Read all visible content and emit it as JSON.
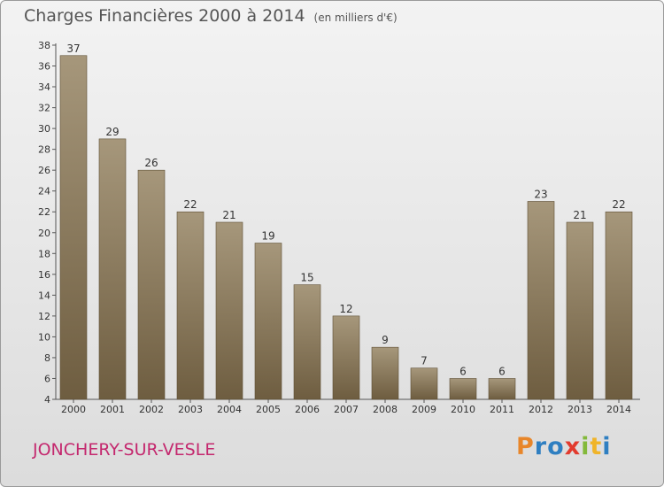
{
  "title": "Charges Financières 2000 à 2014",
  "subtitle": "(en milliers d'€)",
  "commune": "JONCHERY-SUR-VESLE",
  "brand": {
    "letters": [
      "P",
      "r",
      "o",
      "x",
      "i",
      "t",
      "i"
    ],
    "colors": [
      "#e8862a",
      "#2f7fc1",
      "#2f7fc1",
      "#e23b2e",
      "#83b93b",
      "#f0b429",
      "#2f7fc1"
    ]
  },
  "colors": {
    "bar_top": "#a6977b",
    "bar_bottom": "#6e5d40",
    "title": "#555555",
    "commune": "#c4286e"
  },
  "chart_data": {
    "type": "bar",
    "title": "Charges Financières 2000 à 2014",
    "subtitle": "(en milliers d'€)",
    "xlabel": "",
    "ylabel": "",
    "categories": [
      "2000",
      "2001",
      "2002",
      "2003",
      "2004",
      "2005",
      "2006",
      "2007",
      "2008",
      "2009",
      "2010",
      "2011",
      "2012",
      "2013",
      "2014"
    ],
    "values": [
      37,
      29,
      26,
      22,
      21,
      19,
      15,
      12,
      9,
      7,
      6,
      6,
      23,
      21,
      22
    ],
    "ylim": [
      4,
      38
    ],
    "yticks": [
      4,
      6,
      8,
      10,
      12,
      14,
      16,
      18,
      20,
      22,
      24,
      26,
      28,
      30,
      32,
      34,
      36,
      38
    ],
    "grid": false,
    "legend": "none"
  }
}
